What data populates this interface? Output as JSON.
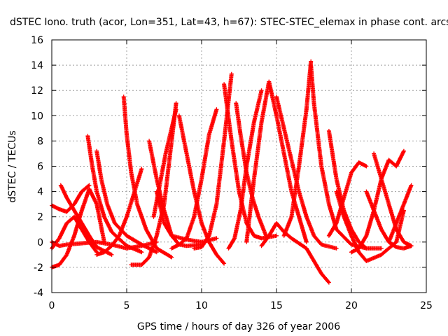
{
  "chart_data": {
    "type": "scatter",
    "title": "dSTEC Iono. truth (acor, Lon=351, Lat=43, h=67): STEC-STEC_elemax in phase cont. arcs",
    "xlabel": "GPS time / hours of day 326 of year 2006",
    "ylabel": "dSTEC  / TECUs",
    "xlim": [
      0,
      25
    ],
    "ylim": [
      -4,
      16
    ],
    "x_ticks": [
      "0",
      "5",
      "10",
      "15",
      "20",
      "25"
    ],
    "y_ticks": [
      "-4",
      "-2",
      "0",
      "2",
      "4",
      "6",
      "8",
      "10",
      "12",
      "14",
      "16"
    ],
    "grid": true,
    "marker": "+",
    "color": "#ff0000",
    "series": [
      {
        "x": [
          0.0,
          0.5,
          1.0,
          1.5,
          2.0,
          2.5,
          3.0,
          3.5
        ],
        "y": [
          -2.0,
          -1.8,
          -1.0,
          0.5,
          2.5,
          4.2,
          3.0,
          0.0
        ]
      },
      {
        "x": [
          0.0,
          0.5,
          1.0,
          1.5,
          2.0,
          2.5
        ],
        "y": [
          2.9,
          2.6,
          2.4,
          3.0,
          4.0,
          4.5
        ]
      },
      {
        "x": [
          0.0,
          0.5,
          1.0,
          2.0,
          3.0,
          4.0,
          5.0,
          6.0,
          7.0
        ],
        "y": [
          0.0,
          -0.3,
          -0.2,
          -0.1,
          0.0,
          -0.2,
          -0.5,
          -0.3,
          0.0
        ]
      },
      {
        "x": [
          0.0,
          0.5,
          1.0,
          1.5,
          2.0,
          2.5,
          3.0
        ],
        "y": [
          -0.5,
          0.3,
          1.5,
          2.0,
          1.0,
          0.0,
          -0.8
        ]
      },
      {
        "x": [
          0.6,
          1.0,
          1.5,
          2.0,
          2.5,
          3.0,
          4.0
        ],
        "y": [
          4.5,
          3.5,
          2.5,
          1.5,
          0.5,
          -0.4,
          -1.0
        ]
      },
      {
        "x": [
          2.4,
          2.7,
          3.0,
          3.5,
          4.0,
          5.0,
          6.0
        ],
        "y": [
          8.4,
          6.0,
          4.0,
          2.0,
          0.8,
          -0.3,
          -0.8
        ]
      },
      {
        "x": [
          3.0,
          3.3,
          3.7,
          4.2,
          5.0,
          6.0,
          7.0
        ],
        "y": [
          7.2,
          5.0,
          3.0,
          1.5,
          0.5,
          -0.2,
          -0.8
        ]
      },
      {
        "x": [
          3.0,
          3.5,
          4.0,
          4.5,
          5.0,
          6.0
        ],
        "y": [
          -1.0,
          -0.8,
          -0.3,
          0.5,
          2.0,
          5.8
        ]
      },
      {
        "x": [
          4.8,
          5.0,
          5.3,
          5.7,
          6.3,
          7.0,
          8.0
        ],
        "y": [
          11.5,
          8.5,
          5.5,
          3.0,
          1.0,
          -0.5,
          -1.2
        ]
      },
      {
        "x": [
          5.3,
          6.0,
          6.5,
          7.0,
          7.5,
          8.0,
          8.3
        ],
        "y": [
          -1.8,
          -1.8,
          -1.2,
          0.5,
          3.0,
          8.0,
          11.0
        ]
      },
      {
        "x": [
          6.5,
          7.0,
          7.5,
          8.0,
          8.5,
          9.0,
          10.0
        ],
        "y": [
          8.0,
          5.0,
          2.5,
          0.5,
          -0.2,
          -0.3,
          -0.2
        ]
      },
      {
        "x": [
          6.8,
          7.2,
          7.6,
          8.0,
          8.3
        ],
        "y": [
          2.0,
          4.5,
          7.0,
          9.0,
          10.5
        ]
      },
      {
        "x": [
          7.0,
          7.5,
          8.0,
          9.0,
          10.0,
          11.0
        ],
        "y": [
          4.0,
          1.5,
          0.5,
          0.2,
          0.0,
          0.3
        ]
      },
      {
        "x": [
          8.0,
          8.5,
          9.0,
          9.5,
          10.0,
          10.5,
          11.0
        ],
        "y": [
          -0.5,
          -0.2,
          0.3,
          2.0,
          5.0,
          8.5,
          10.5
        ]
      },
      {
        "x": [
          8.5,
          9.0,
          9.5,
          10.0,
          10.5,
          11.0,
          11.5
        ],
        "y": [
          10.0,
          7.0,
          4.0,
          1.5,
          0.0,
          -1.0,
          -1.7
        ]
      },
      {
        "x": [
          9.5,
          10.0,
          10.5,
          11.0,
          11.5,
          12.0
        ],
        "y": [
          -0.5,
          -0.4,
          0.5,
          3.0,
          8.0,
          13.3
        ]
      },
      {
        "x": [
          11.5,
          12.0,
          12.5,
          13.0,
          13.5,
          14.0,
          15.0
        ],
        "y": [
          12.5,
          8.0,
          4.0,
          1.5,
          0.5,
          0.3,
          0.5
        ]
      },
      {
        "x": [
          11.8,
          12.2,
          12.6,
          13.0,
          13.5,
          14.0
        ],
        "y": [
          -0.5,
          0.3,
          2.5,
          6.0,
          9.5,
          12.0
        ]
      },
      {
        "x": [
          12.3,
          12.6,
          13.0,
          13.4,
          13.8,
          14.3
        ],
        "y": [
          11.0,
          8.5,
          5.5,
          3.5,
          2.0,
          0.5
        ]
      },
      {
        "x": [
          13.0,
          13.2,
          13.5,
          14.0,
          14.5,
          15.0,
          16.0,
          17.0
        ],
        "y": [
          0.0,
          2.0,
          5.0,
          9.5,
          12.7,
          10.0,
          4.0,
          0.0
        ]
      },
      {
        "x": [
          14.0,
          14.5,
          15.0,
          15.5,
          16.0,
          17.0,
          18.0,
          18.5
        ],
        "y": [
          -0.3,
          0.5,
          1.5,
          0.8,
          0.3,
          -0.5,
          -2.5,
          -3.2
        ]
      },
      {
        "x": [
          15.0,
          15.5,
          16.0,
          16.5,
          17.0,
          17.5,
          18.0,
          19.0
        ],
        "y": [
          11.5,
          9.0,
          6.5,
          4.0,
          2.0,
          0.5,
          -0.2,
          -0.5
        ]
      },
      {
        "x": [
          15.5,
          16.0,
          16.5,
          17.0,
          17.3
        ],
        "y": [
          0.5,
          2.0,
          6.0,
          10.5,
          14.3
        ]
      },
      {
        "x": [
          17.3,
          17.5,
          18.0,
          18.5,
          19.0,
          20.0,
          21.0
        ],
        "y": [
          14.0,
          11.0,
          6.0,
          3.0,
          1.0,
          -0.2,
          -0.5
        ]
      },
      {
        "x": [
          18.5,
          19.0,
          19.5,
          20.0,
          20.5,
          21.0,
          22.0
        ],
        "y": [
          8.8,
          5.0,
          2.5,
          1.0,
          0.0,
          -0.5,
          -0.5
        ]
      },
      {
        "x": [
          19.0,
          19.5,
          20.0,
          20.5,
          21.0,
          22.0,
          23.0,
          23.5
        ],
        "y": [
          4.0,
          2.0,
          0.5,
          -0.8,
          -1.5,
          -1.0,
          0.0,
          2.5
        ]
      },
      {
        "x": [
          18.5,
          19.0,
          19.5,
          20.0,
          20.5,
          21.0
        ],
        "y": [
          0.5,
          1.5,
          3.5,
          5.5,
          6.3,
          6.0
        ]
      },
      {
        "x": [
          20.0,
          20.5,
          21.0,
          21.5,
          22.0,
          22.5,
          23.0,
          23.5
        ],
        "y": [
          -0.8,
          -0.5,
          0.5,
          2.5,
          5.0,
          6.5,
          6.0,
          7.2
        ]
      },
      {
        "x": [
          21.5,
          22.0,
          22.5,
          23.0,
          23.5,
          24.0
        ],
        "y": [
          7.0,
          5.0,
          3.0,
          1.0,
          0.0,
          -0.3
        ]
      },
      {
        "x": [
          22.5,
          23.0,
          23.5,
          24.0
        ],
        "y": [
          0.0,
          1.5,
          3.0,
          4.5
        ]
      },
      {
        "x": [
          21.0,
          21.5,
          22.0,
          22.5,
          23.0,
          23.5,
          24.0
        ],
        "y": [
          4.0,
          2.5,
          1.0,
          0.0,
          -0.4,
          -0.5,
          -0.3
        ]
      }
    ]
  }
}
